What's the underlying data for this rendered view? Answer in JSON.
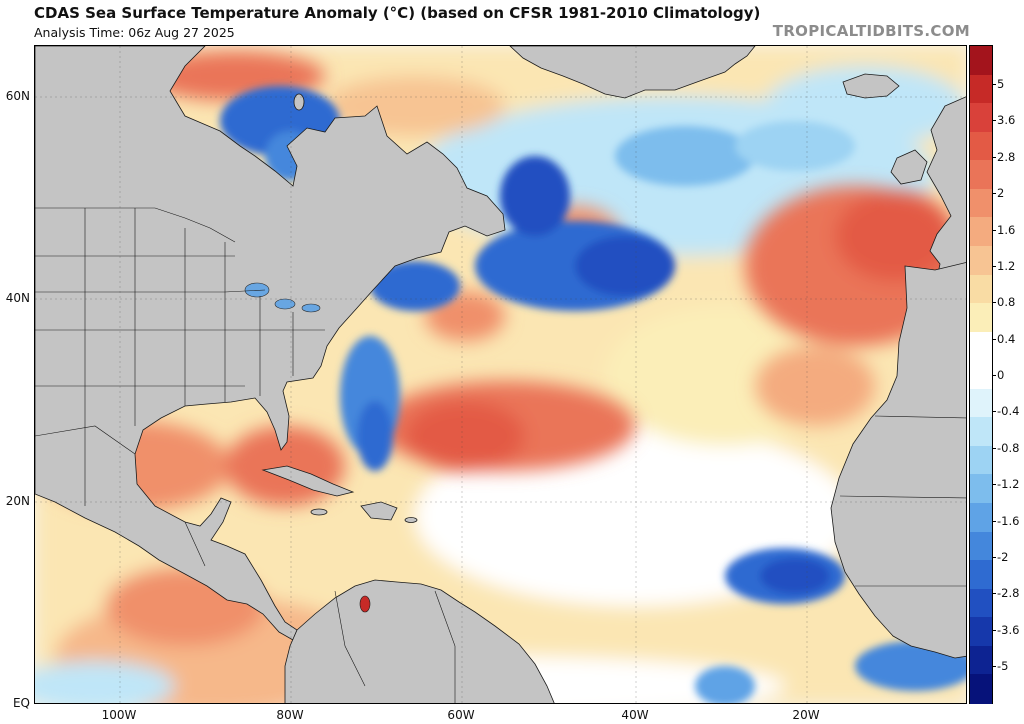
{
  "header": {
    "title": "CDAS Sea Surface Temperature Anomaly (°C) (based on CFSR 1981-2010 Climatology)",
    "subtitle": "Analysis Time: 06z Aug 27 2025",
    "credit": "TROPICALTIDBITS.COM"
  },
  "axes": {
    "lat_labels": [
      "60N",
      "40N",
      "20N",
      "EQ"
    ],
    "lon_labels": [
      "100W",
      "80W",
      "60W",
      "40W",
      "20W"
    ]
  },
  "colorbar": {
    "labels": [
      "5",
      "3.6",
      "2.8",
      "2",
      "1.6",
      "1.2",
      "0.8",
      "0.4",
      "0",
      "-0.4",
      "-0.8",
      "-1.2",
      "-1.6",
      "-2",
      "-2.8",
      "-3.6",
      "-5"
    ],
    "colors": [
      "#a3141c",
      "#c62a27",
      "#d9413a",
      "#e35a45",
      "#ea7458",
      "#f0906b",
      "#f4ab7f",
      "#f7c493",
      "#f9dca4",
      "#fbeeb8",
      "#ffffff",
      "#ffffff",
      "#dff3fb",
      "#bfe6f8",
      "#9dd3f3",
      "#7dbded",
      "#5fa3e6",
      "#4487dc",
      "#2f6bd1",
      "#2150c1",
      "#1638ab",
      "#0d2392",
      "#06127a"
    ],
    "land_color": "#c4c4c4",
    "ocean_neutral": "#f7f3e8"
  },
  "regions": [
    {
      "name": "north-america",
      "kind": "land"
    },
    {
      "name": "greenland",
      "kind": "land"
    },
    {
      "name": "europe",
      "kind": "land"
    },
    {
      "name": "africa",
      "kind": "land"
    },
    {
      "name": "south-america",
      "kind": "land"
    },
    {
      "name": "cuba",
      "kind": "land"
    },
    {
      "name": "hispaniola",
      "kind": "land"
    },
    {
      "name": "iceland",
      "kind": "land"
    },
    {
      "name": "ireland",
      "kind": "land"
    },
    {
      "name": "hudson-bay-cold-anomaly",
      "kind": "anomaly",
      "anomaly_c": -2
    },
    {
      "name": "northwest-atlantic-cold-anomaly",
      "kind": "anomaly",
      "anomaly_c": -2.8
    },
    {
      "name": "gulf-stream-cold-anomaly",
      "kind": "anomaly",
      "anomaly_c": -2
    },
    {
      "name": "east-atlantic-cold-anomaly",
      "kind": "anomaly",
      "anomaly_c": -2
    },
    {
      "name": "subtropical-warm-anomaly",
      "kind": "anomaly",
      "anomaly_c": 1.6
    },
    {
      "name": "northeast-atlantic-warm-anomaly",
      "kind": "anomaly",
      "anomaly_c": 2
    },
    {
      "name": "gulf-of-mexico-warm-anomaly",
      "kind": "anomaly",
      "anomaly_c": 1.2
    },
    {
      "name": "labrador-sea-warm-anomaly",
      "kind": "anomaly",
      "anomaly_c": 1.6
    }
  ]
}
